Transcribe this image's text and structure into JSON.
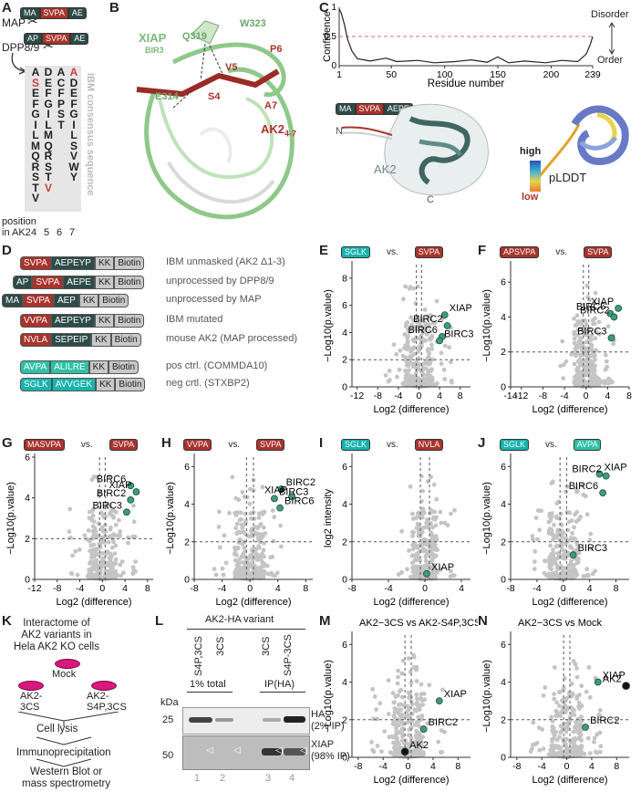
{
  "panels": {
    "A": "A",
    "B": "B",
    "C": "C",
    "D": "D",
    "E": "E",
    "F": "F",
    "G": "G",
    "H": "H",
    "I": "I",
    "J": "J",
    "K": "K",
    "L": "L",
    "M": "M",
    "N": "N"
  },
  "panelA": {
    "top_tag": [
      "MA",
      "SVPA",
      "AE"
    ],
    "map": "MAP",
    "mid_tag": [
      "AP",
      "SVPA",
      "AE"
    ],
    "dpp": "DPP8/9",
    "columns": [
      [
        "A",
        "S",
        "E",
        "F",
        "G",
        "I",
        "L",
        "M",
        "Q",
        "R",
        "S",
        "T",
        "V"
      ],
      [
        "D",
        "E",
        "F",
        "G",
        "I",
        "L",
        "M",
        "Q",
        "R",
        "S",
        "T",
        "V"
      ],
      [
        "A",
        "C",
        "F",
        "P",
        "S",
        "T"
      ],
      [
        "A",
        "D",
        "E",
        "F",
        "G",
        "I",
        "L",
        "S",
        "V",
        "W",
        "Y"
      ]
    ],
    "side_label": "IBM consensus sequence",
    "position_label": "position\nin AK2",
    "positions": [
      "4",
      "5",
      "6",
      "7"
    ]
  },
  "panelB": {
    "xiap": "XIAP",
    "bir3": "BIR3",
    "residues": [
      "Q319",
      "W323",
      "E314",
      "V5",
      "P6",
      "S4",
      "A7"
    ],
    "ak2": "AK2",
    "ak2_sub": "4-7"
  },
  "panelC": {
    "ylabel": "Confidence",
    "xlabel": "Residue number",
    "xticks": [
      "1",
      "50",
      "100",
      "150",
      "200",
      "239"
    ],
    "yticks": [
      "0",
      "0.5",
      "1"
    ],
    "disorder": "Disorder",
    "order": "Order",
    "tag": [
      "MA",
      "SVPA",
      "AEPE"
    ],
    "n": "N",
    "c": "C",
    "ak2": "AK2",
    "high": "high",
    "low": "low",
    "plddt": "pLDDT"
  },
  "panelD": {
    "rows": [
      {
        "segs": [
          "SVPA",
          "AEPEYP",
          "KK",
          "Biotin"
        ],
        "desc": "IBM unmasked (AK2 Δ1-3)"
      },
      {
        "segs": [
          "AP",
          "SVPA",
          "AEPE",
          "KK",
          "Biotin"
        ],
        "desc": "unprocessed by DPP8/9"
      },
      {
        "segs": [
          "MA",
          "SVPA",
          "AEP",
          "KK",
          "Biotin"
        ],
        "desc": "unprocessed by MAP"
      },
      {
        "segs": [
          "VVPA",
          "AEPEYP",
          "KK",
          "Biotin"
        ],
        "desc": "IBM mutated"
      },
      {
        "segs": [
          "NVLA",
          "SEPEIP",
          "KK",
          "Biotin"
        ],
        "desc": "mouse AK2 (MAP processed)"
      },
      {
        "segs": [
          "AVPA",
          "ALILRE",
          "KK",
          "Biotin"
        ],
        "desc": "pos ctrl. (COMMDA10)"
      },
      {
        "segs": [
          "SGLK",
          "AVVGEK",
          "KK",
          "Biotin"
        ],
        "desc": "neg crtl. (STXBP2)"
      }
    ]
  },
  "chart_data": [
    {
      "id": "E",
      "type": "scatter",
      "left_tag": "SGLK",
      "right_tag": "SVPA",
      "vs": "vs.",
      "xlabel": "Log2 (difference)",
      "ylabel": "−Log10(p.value)",
      "xticks": [
        "-12",
        "-8",
        "-4",
        "0",
        "4",
        "8"
      ],
      "yticks": [
        "0",
        "2",
        "4",
        "6",
        "8"
      ],
      "xlim": [
        -13,
        10
      ],
      "ylim": [
        0,
        9
      ],
      "highlight": [
        {
          "name": "XIAP",
          "x": 5,
          "y": 5.3
        },
        {
          "name": "BIRC2",
          "x": 5.5,
          "y": 4.5
        },
        {
          "name": "BIRC6",
          "x": 4.5,
          "y": 3.7
        },
        {
          "name": "BIRC3",
          "x": 4,
          "y": 3.4
        }
      ]
    },
    {
      "id": "F",
      "type": "scatter",
      "left_tag": "APSVPA",
      "right_tag": "SVPA",
      "vs": "vs.",
      "xlabel": "Log2 (difference)",
      "ylabel": "−Log10(p.value)",
      "xticks": [
        "-14",
        "-12",
        "-8",
        "-4",
        "0",
        "4",
        "8"
      ],
      "yticks": [
        "0",
        "2",
        "4",
        "6"
      ],
      "xlim": [
        -14,
        8
      ],
      "ylim": [
        0,
        7
      ],
      "highlight": [
        {
          "name": "XIAP",
          "x": 6,
          "y": 4.5
        },
        {
          "name": "BIRC6",
          "x": 4.5,
          "y": 4.2
        },
        {
          "name": "BIRC2",
          "x": 5.2,
          "y": 4.0
        },
        {
          "name": "BIRC3",
          "x": 4.7,
          "y": 2.8
        }
      ]
    },
    {
      "id": "G",
      "type": "scatter",
      "left_tag": "MASVPA",
      "right_tag": "SVPA",
      "vs": "vs.",
      "xlabel": "Log2 (difference)",
      "ylabel": "−Log10(p.value)",
      "xticks": [
        "-12",
        "-8",
        "-4",
        "0",
        "4",
        "8"
      ],
      "yticks": [
        "0",
        "2",
        "4",
        "6"
      ],
      "xlim": [
        -12,
        9
      ],
      "ylim": [
        0,
        6
      ],
      "highlight": [
        {
          "name": "BIRC6",
          "x": 5,
          "y": 4.6
        },
        {
          "name": "XIAP",
          "x": 6,
          "y": 4.3
        },
        {
          "name": "BIRC2",
          "x": 5,
          "y": 3.9
        },
        {
          "name": "BIRC3",
          "x": 4.3,
          "y": 3.3
        }
      ]
    },
    {
      "id": "H",
      "type": "scatter",
      "left_tag": "VVPA",
      "right_tag": "SVPA",
      "vs": "vs.",
      "xlabel": "Log2 (difference)",
      "ylabel": "−Log10(p.value)",
      "xticks": [
        "-8",
        "-4",
        "0",
        "4",
        "8"
      ],
      "yticks": [
        "0",
        "2",
        "4",
        "6"
      ],
      "xlim": [
        -8,
        9
      ],
      "ylim": [
        0,
        6.5
      ],
      "highlight": [
        {
          "name": "BIRC2",
          "x": 4.5,
          "y": 4.8
        },
        {
          "name": "XIAP",
          "x": 6,
          "y": 4.4
        },
        {
          "name": "BIRC3",
          "x": 3.5,
          "y": 4.3
        },
        {
          "name": "BIRC6",
          "x": 4.3,
          "y": 3.8
        }
      ]
    },
    {
      "id": "I",
      "type": "scatter",
      "left_tag": "SGLK",
      "right_tag": "NVLA",
      "vs": "vs.",
      "xlabel": "Log2 (difference)",
      "ylabel": "log2 intensity",
      "xticks": [
        "-8",
        "-4",
        "0",
        "4"
      ],
      "yticks": [
        "0",
        "2",
        "4",
        "6"
      ],
      "xlim": [
        -8,
        5
      ],
      "ylim": [
        0,
        6.5
      ],
      "highlight": [
        {
          "name": "XIAP",
          "x": 0.2,
          "y": 0.3
        }
      ]
    },
    {
      "id": "J",
      "type": "scatter",
      "left_tag": "SGLK",
      "right_tag": "AVPA",
      "vs": "vs.",
      "xlabel": "Log2 (difference)",
      "ylabel": "−Log10(p.value)",
      "xticks": [
        "-8",
        "-4",
        "0",
        "4",
        "8"
      ],
      "yticks": [
        "0",
        "2",
        "4",
        "6"
      ],
      "xlim": [
        -8,
        10
      ],
      "ylim": [
        0,
        6.5
      ],
      "highlight": [
        {
          "name": "XIAP",
          "x": 5.5,
          "y": 5.6
        },
        {
          "name": "BIRC2",
          "x": 6.5,
          "y": 5.5
        },
        {
          "name": "BIRC6",
          "x": 6,
          "y": 4.6
        },
        {
          "name": "BIRC3",
          "x": 1.5,
          "y": 1.3
        }
      ]
    },
    {
      "id": "M",
      "type": "scatter",
      "title": "AK2−3CS vs AK2-S4P,3CS",
      "xlabel": "Log2 (difference)",
      "ylabel": "−Log10(p.value)",
      "xticks": [
        "-8",
        "-4",
        "0",
        "4",
        "8"
      ],
      "yticks": [
        "0",
        "2",
        "4",
        "6"
      ],
      "xlim": [
        -9,
        10
      ],
      "ylim": [
        0,
        6.5
      ],
      "highlight": [
        {
          "name": "XIAP",
          "x": 5,
          "y": 3.0
        },
        {
          "name": "BIRC2",
          "x": 2.5,
          "y": 1.5
        },
        {
          "name": "AK2",
          "x": -0.5,
          "y": 0.3
        }
      ]
    },
    {
      "id": "N",
      "type": "scatter",
      "title": "AK2−3CS vs Mock",
      "xlabel": "Log2 (difference)",
      "ylabel": "−Log10(p.value)",
      "xticks": [
        "-8",
        "-4",
        "0",
        "4",
        "8"
      ],
      "yticks": [
        "0",
        "2",
        "4",
        "6"
      ],
      "xlim": [
        -9,
        10
      ],
      "ylim": [
        0,
        6.5
      ],
      "highlight": [
        {
          "name": "XIAP",
          "x": 5,
          "y": 4.0
        },
        {
          "name": "AK2",
          "x": 9.5,
          "y": 3.8
        },
        {
          "name": "BIRC2",
          "x": 3,
          "y": 1.6
        }
      ]
    }
  ],
  "panelK": {
    "title": "Interactome of\nAK2 variants in\nHela AK2 KO cells",
    "mock": "Mock",
    "v1": "AK2-\n3CS",
    "v2": "AK2-\nS4P,3CS",
    "steps": [
      "Cell lysis",
      "Immunoprecipitation",
      "Western Blot or\nmass spectrometry"
    ]
  },
  "panelL": {
    "header": "AK2-HA variant",
    "lanes": [
      "S4P,3CS",
      "3CS",
      "3CS",
      "S4P-3CS"
    ],
    "total": "1% total",
    "ip": "IP(HA)",
    "kda": "kDa",
    "mw": [
      "25",
      "50"
    ],
    "ha": "HA\n(2% IP)",
    "xiap": "XIAP\n(98% IP)",
    "lane_numbers": [
      "1",
      "2",
      "3",
      "4"
    ]
  }
}
